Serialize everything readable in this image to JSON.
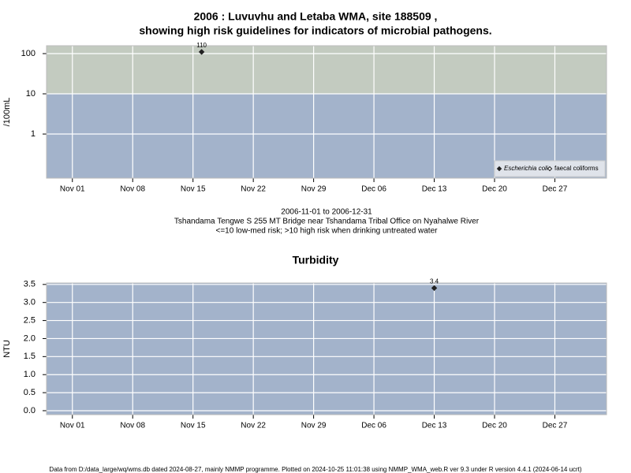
{
  "chart_data": [
    {
      "type": "scatter",
      "title": [
        "2006 : Luvuvhu and Letaba WMA, site 188509 ,",
        "showing high risk guidelines for indicators of microbial pathogens."
      ],
      "y_label": "/100mL",
      "log_y": true,
      "grid": true,
      "threshold": 10,
      "high_color": "#c3cbc0",
      "low_color": "#a3b3cb",
      "xlim": [
        "2006-10-29",
        "2007-01-02"
      ],
      "xticks": [
        {
          "value": "2006-11-01",
          "label": "Nov 01"
        },
        {
          "value": "2006-11-08",
          "label": "Nov 08"
        },
        {
          "value": "2006-11-15",
          "label": "Nov 15"
        },
        {
          "value": "2006-11-22",
          "label": "Nov 22"
        },
        {
          "value": "2006-11-29",
          "label": "Nov 29"
        },
        {
          "value": "2006-12-06",
          "label": "Dec 06"
        },
        {
          "value": "2006-12-13",
          "label": "Dec 13"
        },
        {
          "value": "2006-12-20",
          "label": "Dec 20"
        },
        {
          "value": "2006-12-27",
          "label": "Dec 27"
        }
      ],
      "ylim": [
        0.08,
        157
      ],
      "yticks": [
        1,
        10,
        100
      ],
      "legend": "bottom-right",
      "series": [
        {
          "name": "Escherichia coli",
          "color": "#222222",
          "filled": true,
          "x": [
            "2006-11-16"
          ],
          "values": [
            110
          ]
        },
        {
          "name": "faecal coliforms",
          "color": "#222222",
          "filled": false,
          "x": [],
          "values": []
        }
      ],
      "notes": [
        "2006-11-01 to 2006-12-31",
        "Tshandama Tengwe S 255 MT Bridge near Tshandama Tribal Office on Nyahalwe River",
        "<=10 low-med risk; >10 high risk when drinking untreated water"
      ]
    },
    {
      "type": "scatter",
      "title": [
        "Turbidity"
      ],
      "y_label": "NTU",
      "log_y": false,
      "grid": true,
      "background": "#a3b3cb",
      "xlim": [
        "2006-10-29",
        "2007-01-02"
      ],
      "xticks": [
        {
          "value": "2006-11-01",
          "label": "Nov 01"
        },
        {
          "value": "2006-11-08",
          "label": "Nov 08"
        },
        {
          "value": "2006-11-15",
          "label": "Nov 15"
        },
        {
          "value": "2006-11-22",
          "label": "Nov 22"
        },
        {
          "value": "2006-11-29",
          "label": "Nov 29"
        },
        {
          "value": "2006-12-06",
          "label": "Dec 06"
        },
        {
          "value": "2006-12-13",
          "label": "Dec 13"
        },
        {
          "value": "2006-12-20",
          "label": "Dec 20"
        },
        {
          "value": "2006-12-27",
          "label": "Dec 27"
        }
      ],
      "ylim": [
        -0.11,
        3.54
      ],
      "yticks": [
        {
          "value": 0,
          "label": "0.0"
        },
        0.5,
        {
          "value": 1,
          "label": "1.0"
        },
        1.5,
        {
          "value": 2,
          "label": "2.0"
        },
        2.5,
        {
          "value": 3,
          "label": "3.0"
        },
        3.5
      ],
      "series": [
        {
          "name": "Turbidity",
          "color": "#222222",
          "filled": true,
          "x": [
            "2006-12-13"
          ],
          "values": [
            3.4
          ]
        }
      ]
    }
  ],
  "footer": "Data from D:/data_large/wq/wms.db dated 2024-08-27, mainly NMMP programme. Plotted on 2024-10-25 11:01:38 using NMMP_WMA_web.R ver 9.3 under R version 4.4.1 (2024-06-14 ucrt)"
}
